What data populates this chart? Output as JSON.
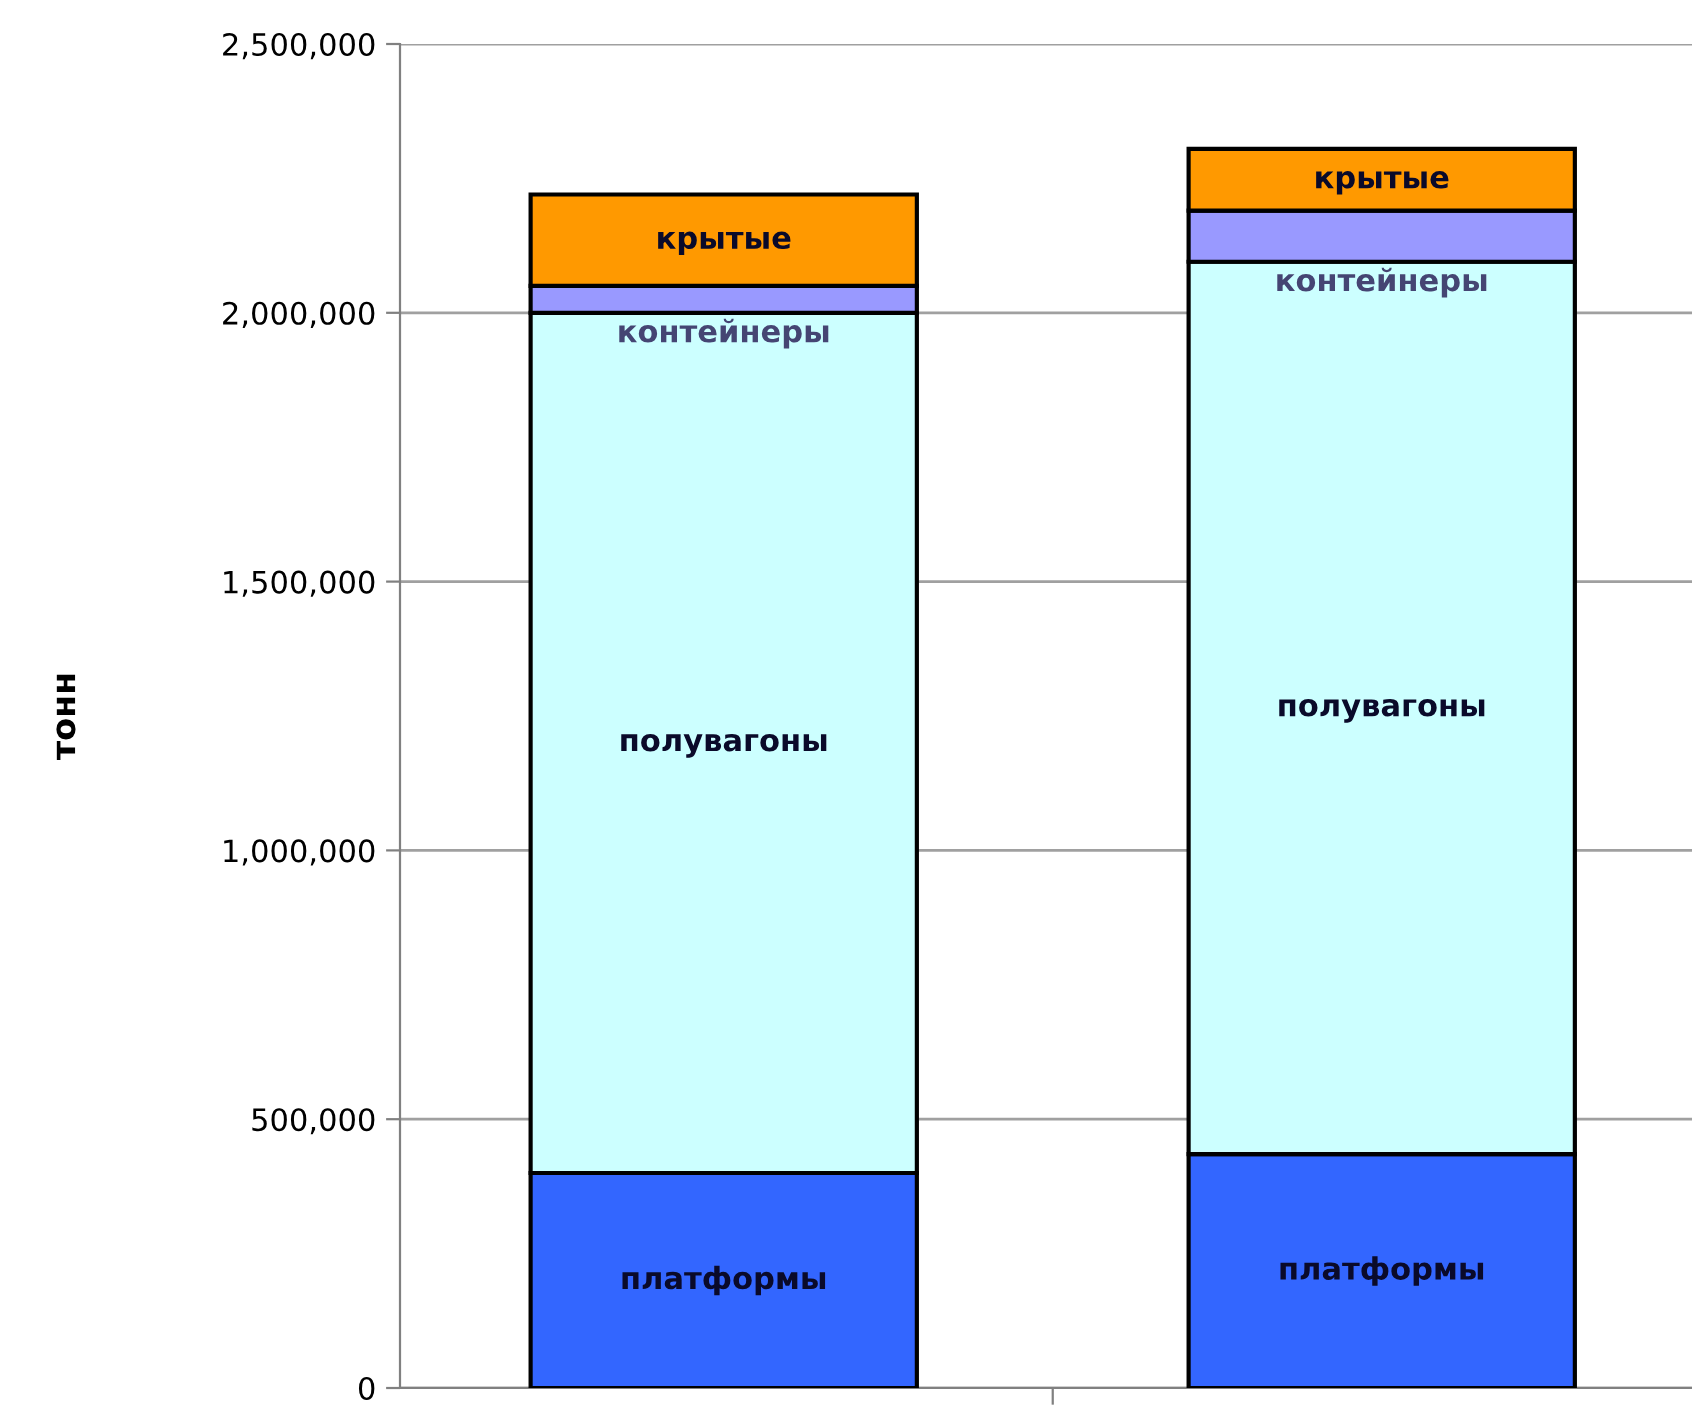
{
  "chart_data": {
    "type": "bar",
    "stacked": true,
    "ylabel": "тонн",
    "categories": [
      null,
      null
    ],
    "series": [
      {
        "name": "платформы",
        "color": "#3366ff",
        "values": [
          400000,
          435000
        ]
      },
      {
        "name": "полувагоны",
        "color": "#ccffff",
        "values": [
          1600000,
          1660000
        ]
      },
      {
        "name": "контейнеры",
        "color": "#9999ff",
        "values": [
          50000,
          95000
        ]
      },
      {
        "name": "крытые",
        "color": "#ff9900",
        "values": [
          170000,
          115000
        ]
      }
    ],
    "ylim": [
      0,
      2500000
    ],
    "yticks": [
      0,
      {
        "value": 500000,
        "label": "500,000"
      },
      {
        "value": 1000000,
        "label": "1,000,000"
      },
      {
        "value": 1500000,
        "label": "1,500,000"
      },
      {
        "value": 2000000,
        "label": "2,000,000"
      },
      {
        "value": 2500000,
        "label": "2,500,000"
      }
    ],
    "grid": "y",
    "legend": false
  }
}
